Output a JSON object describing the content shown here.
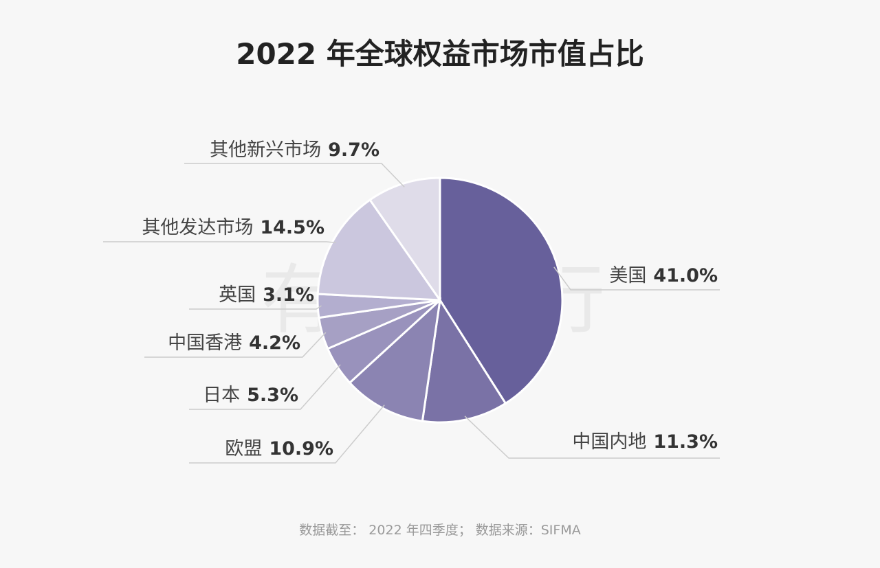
{
  "chart_data": {
    "type": "pie",
    "title": "2022 年全球权益市场市值占比",
    "categories": [
      "美国",
      "中国内地",
      "欧盟",
      "日本",
      "中国香港",
      "英国",
      "其他发达市场",
      "其他新兴市场"
    ],
    "values": [
      41.0,
      11.3,
      10.9,
      5.3,
      4.2,
      3.1,
      14.5,
      9.7
    ],
    "value_labels": [
      "41.0%",
      "11.3%",
      "10.9%",
      "5.3%",
      "4.2%",
      "3.1%",
      "14.5%",
      "9.7%"
    ],
    "colors": [
      "#67609b",
      "#7a72a6",
      "#8b84b2",
      "#9992bc",
      "#a6a0c4",
      "#b3aecf",
      "#cbc7de",
      "#dfdce9"
    ],
    "watermark": "有知有行",
    "source": "数据截至： 2022 年四季度； 数据来源：SIFMA"
  }
}
